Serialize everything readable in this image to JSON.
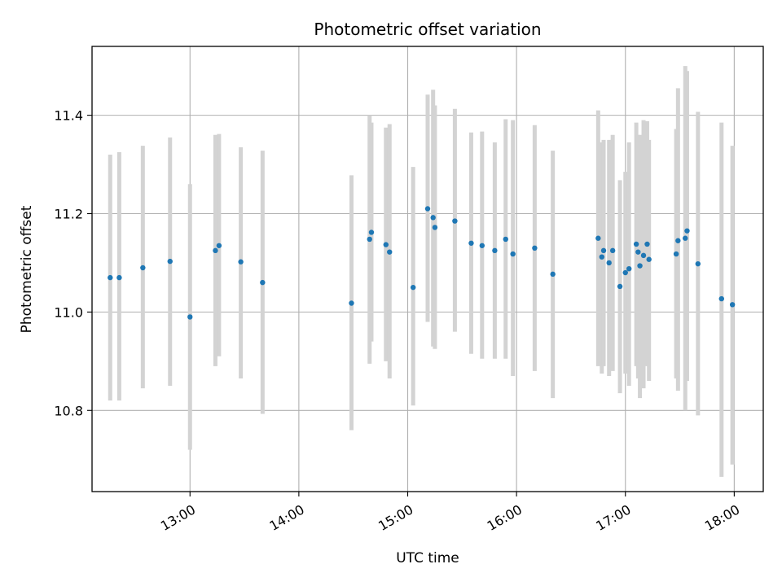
{
  "chart_data": {
    "type": "scatter",
    "title": "Photometric offset variation",
    "xlabel": "UTC time",
    "ylabel": "Photometric offset",
    "x_is_time": true,
    "xlim": [
      "12:06",
      "18:16"
    ],
    "ylim": [
      10.635,
      11.54
    ],
    "xticks": [
      "13:00",
      "14:00",
      "15:00",
      "16:00",
      "17:00",
      "18:00"
    ],
    "yticks": [
      10.8,
      11.0,
      11.2,
      11.4
    ],
    "ytick_labels": [
      "10.8",
      "11.0",
      "11.2",
      "11.4"
    ],
    "grid": true,
    "marker_color": "#1f77b4",
    "errorbar_color": "#d3d3d3",
    "series": [
      {
        "x": [
          "12:16",
          "12:21",
          "12:34",
          "12:49",
          "13:00",
          "13:14",
          "13:16",
          "13:28",
          "13:40",
          "14:29",
          "14:39",
          "14:40",
          "14:48",
          "14:50",
          "15:03",
          "15:11",
          "15:14",
          "15:15",
          "15:26",
          "15:35",
          "15:41",
          "15:48",
          "15:54",
          "15:58",
          "16:10",
          "16:20",
          "16:45",
          "16:47",
          "16:48",
          "16:51",
          "16:53",
          "16:57",
          "17:00",
          "17:02",
          "17:06",
          "17:07",
          "17:08",
          "17:10",
          "17:12",
          "17:13",
          "17:28",
          "17:29",
          "17:33",
          "17:34",
          "17:40",
          "17:53",
          "17:59"
        ],
        "y": [
          11.07,
          11.07,
          11.09,
          11.103,
          10.99,
          11.125,
          11.135,
          11.102,
          11.06,
          11.018,
          11.148,
          11.162,
          11.137,
          11.122,
          11.05,
          11.21,
          11.192,
          11.172,
          11.185,
          11.14,
          11.135,
          11.125,
          11.148,
          11.118,
          11.13,
          11.077,
          11.15,
          11.112,
          11.125,
          11.1,
          11.125,
          11.052,
          11.08,
          11.088,
          11.138,
          11.122,
          11.094,
          11.115,
          11.138,
          11.107,
          11.118,
          11.145,
          11.15,
          11.165,
          11.098,
          11.027,
          11.015
        ],
        "y_low": [
          10.82,
          10.82,
          10.845,
          10.85,
          10.72,
          10.89,
          10.91,
          10.865,
          10.793,
          10.76,
          10.895,
          10.94,
          10.9,
          10.865,
          10.81,
          10.98,
          10.93,
          10.925,
          10.96,
          10.915,
          10.905,
          10.905,
          10.905,
          10.87,
          10.88,
          10.825,
          10.89,
          10.875,
          10.89,
          10.87,
          10.88,
          10.835,
          10.875,
          10.85,
          10.89,
          10.865,
          10.825,
          10.845,
          10.89,
          10.86,
          10.865,
          10.84,
          10.8,
          10.86,
          10.79,
          10.665,
          10.69
        ],
        "y_high": [
          11.32,
          11.325,
          11.338,
          11.355,
          11.26,
          11.36,
          11.362,
          11.335,
          11.328,
          11.278,
          11.4,
          11.385,
          11.375,
          11.382,
          11.295,
          11.442,
          11.452,
          11.42,
          11.413,
          11.365,
          11.367,
          11.345,
          11.392,
          11.39,
          11.38,
          11.328,
          11.41,
          11.345,
          11.35,
          11.35,
          11.36,
          11.268,
          11.285,
          11.345,
          11.385,
          11.36,
          11.36,
          11.39,
          11.388,
          11.35,
          11.372,
          11.455,
          11.5,
          11.49,
          11.407,
          11.385,
          11.338
        ]
      }
    ]
  }
}
